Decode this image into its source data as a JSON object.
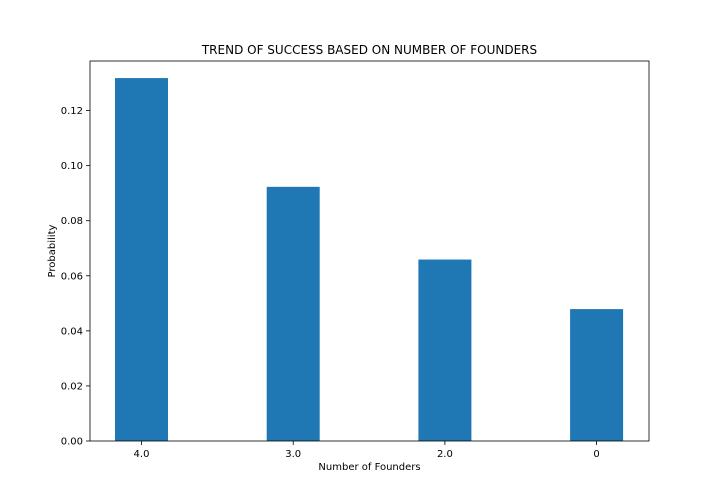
{
  "chart_data": {
    "type": "bar",
    "title": "TREND OF SUCCESS BASED ON NUMBER OF FOUNDERS",
    "xlabel": "Number of Founders",
    "ylabel": "Probability",
    "categories": [
      "4.0",
      "3.0",
      "2.0",
      "0"
    ],
    "values": [
      0.1318,
      0.0923,
      0.0659,
      0.0479
    ],
    "ylim": [
      0,
      0.138
    ],
    "yticks": [
      0.0,
      0.02,
      0.04,
      0.06,
      0.08,
      0.1,
      0.12
    ],
    "ytick_labels": [
      "0.00",
      "0.02",
      "0.04",
      "0.06",
      "0.08",
      "0.10",
      "0.12"
    ],
    "bar_color": "#1f77b4",
    "grid": false,
    "legend": "none"
  }
}
